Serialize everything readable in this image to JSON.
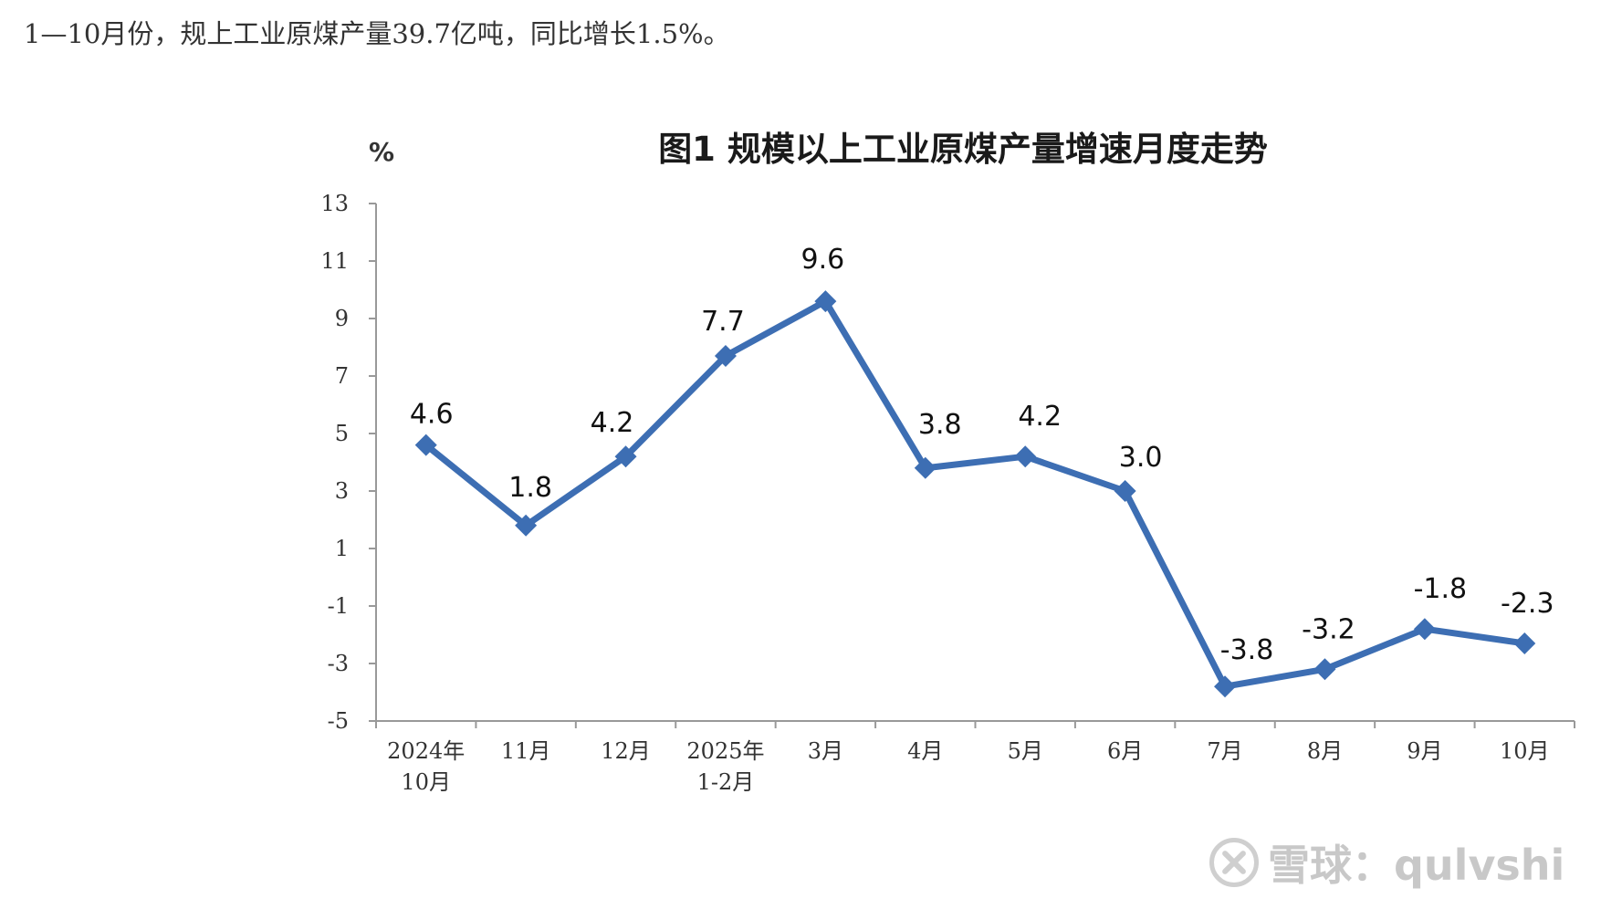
{
  "intro_text": "1—10月份，规上工业原煤产量39.7亿吨，同比增长1.5%。",
  "watermark": "雪球：qulvshi",
  "colors": {
    "series": "#3d6eb3",
    "axis": "#999999"
  },
  "chart_data": {
    "type": "line",
    "title": "图1  规模以上工业原煤产量增速月度走势",
    "ylabel": "%",
    "xlabel": "",
    "ylim": [
      -5,
      13
    ],
    "yticks": [
      13,
      11,
      9,
      7,
      5,
      3,
      1,
      -1,
      -3,
      -5
    ],
    "grid": false,
    "categories": [
      [
        "2024年",
        "10月"
      ],
      [
        "11月"
      ],
      [
        "12月"
      ],
      [
        "2025年",
        "1-2月"
      ],
      [
        "3月"
      ],
      [
        "4月"
      ],
      [
        "5月"
      ],
      [
        "6月"
      ],
      [
        "7月"
      ],
      [
        "8月"
      ],
      [
        "9月"
      ],
      [
        "10月"
      ]
    ],
    "values": [
      4.6,
      1.8,
      4.2,
      7.7,
      9.6,
      3.8,
      4.2,
      3.0,
      -3.8,
      -3.2,
      -1.8,
      -2.3
    ],
    "data_labels": [
      "4.6",
      "1.8",
      "4.2",
      "7.7",
      "9.6",
      "3.8",
      "4.2",
      "3.0",
      "-3.8",
      "-3.2",
      "-1.8",
      "-2.3"
    ]
  }
}
